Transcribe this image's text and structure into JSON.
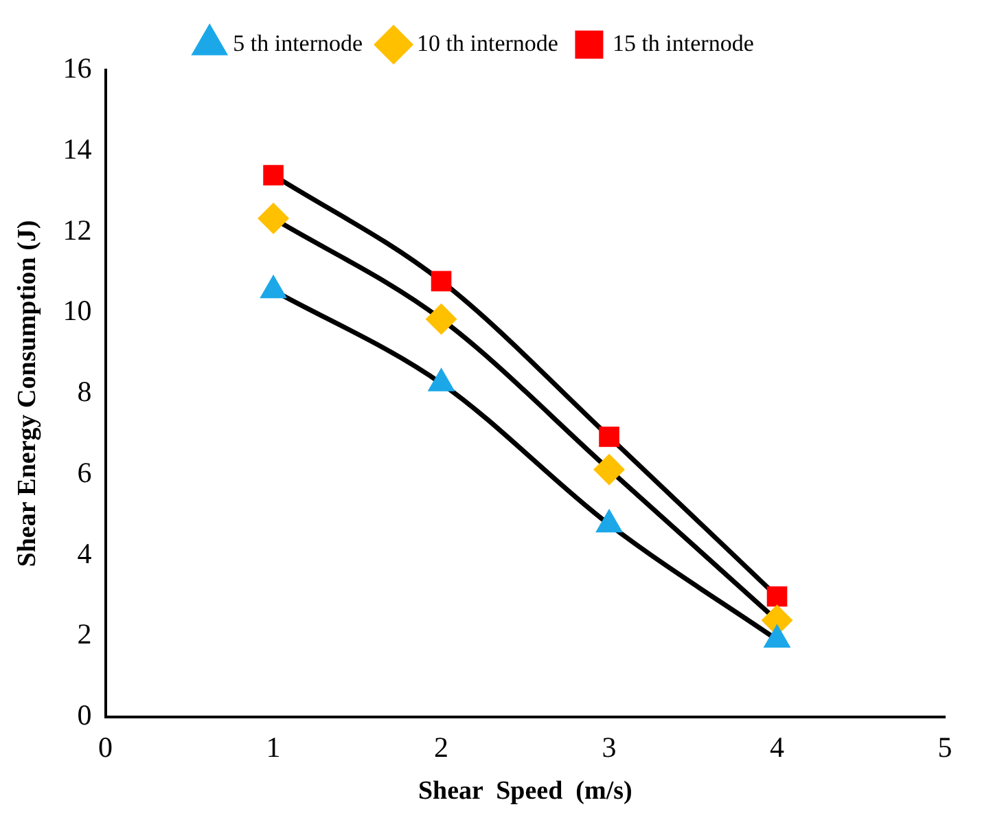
{
  "chart_data": {
    "type": "line",
    "xlabel": "Shear  Speed  (m/s)",
    "ylabel": "Shear Energy Consumption (J)",
    "x": [
      1,
      2,
      3,
      4
    ],
    "series": [
      {
        "name": "5 th internode",
        "color": "#1ca8e8",
        "marker": "triangle",
        "values": [
          10.55,
          8.25,
          4.76,
          1.91
        ]
      },
      {
        "name": "10 th internode",
        "color": "#ffc000",
        "marker": "diamond",
        "values": [
          12.33,
          9.84,
          6.12,
          2.39
        ]
      },
      {
        "name": "15 th internode",
        "color": "#ff0000",
        "marker": "square",
        "values": [
          13.4,
          10.78,
          6.93,
          2.98
        ]
      }
    ],
    "xlim": [
      0,
      5
    ],
    "xticks": [
      0,
      1,
      2,
      3,
      4,
      5
    ],
    "ylim": [
      0,
      16
    ],
    "yticks": [
      0,
      2,
      4,
      6,
      8,
      10,
      12,
      14,
      16
    ],
    "grid": false,
    "legend": "top",
    "line_style": "solid"
  }
}
